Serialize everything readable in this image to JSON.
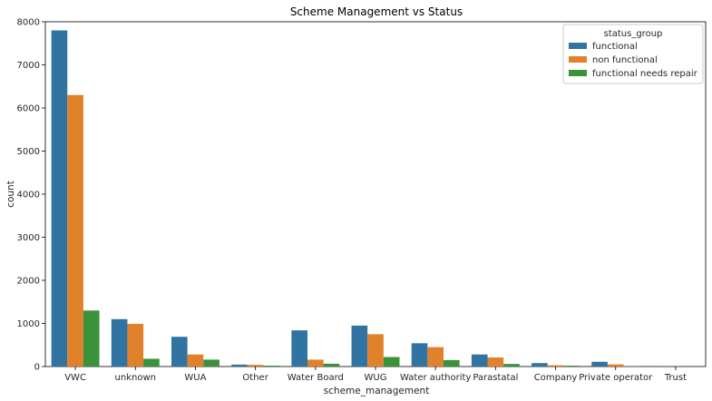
{
  "chart_data": {
    "type": "bar",
    "title": "Scheme Management vs Status",
    "xlabel": "scheme_management",
    "ylabel": "count",
    "ylim": [
      0,
      8000
    ],
    "yticks": [
      0,
      1000,
      2000,
      3000,
      4000,
      5000,
      6000,
      7000,
      8000
    ],
    "grid": false,
    "legend": {
      "title": "status_group",
      "placement": "top-right"
    },
    "categories": [
      "VWC",
      "unknown",
      "WUA",
      "Other",
      "Water Board",
      "WUG",
      "Water authority",
      "Parastatal",
      "Company",
      "Private operator",
      "Trust"
    ],
    "series": [
      {
        "name": "functional",
        "color": "#3274a1",
        "values": [
          7800,
          1100,
          690,
          45,
          840,
          950,
          540,
          280,
          80,
          110,
          3
        ]
      },
      {
        "name": "non functional",
        "color": "#e1812c",
        "values": [
          6300,
          990,
          280,
          40,
          160,
          750,
          450,
          210,
          30,
          50,
          2
        ]
      },
      {
        "name": "functional needs repair",
        "color": "#3a923a",
        "values": [
          1300,
          180,
          160,
          20,
          65,
          220,
          150,
          60,
          20,
          5,
          0
        ]
      }
    ]
  }
}
